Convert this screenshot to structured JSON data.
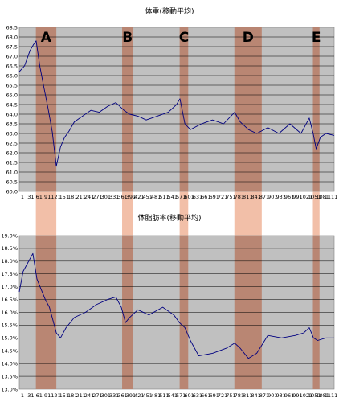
{
  "band_labels": [
    "A",
    "B",
    "C",
    "D",
    "E"
  ],
  "colors": {
    "plot_bg": "#c0c0c0",
    "band_dark": "#b87f6a",
    "band_light": "#f2bfa8",
    "line": "#000080",
    "grid": "#000000"
  },
  "x_ticks": [
    "1",
    "31",
    "61",
    "91",
    "121",
    "151",
    "181",
    "211",
    "241",
    "271",
    "301",
    "331",
    "361",
    "391",
    "421",
    "451",
    "481",
    "511",
    "541",
    "571",
    "601",
    "631",
    "661",
    "691",
    "721",
    "751",
    "781",
    "811",
    "841",
    "871",
    "901",
    "931",
    "961",
    "991",
    "1021",
    "1051",
    "1081",
    "1111"
  ],
  "chart_data": [
    {
      "type": "line",
      "title": "体重(移動平均)",
      "x_range": [
        1,
        1140
      ],
      "ylim": [
        60.0,
        68.5
      ],
      "y_ticks": [
        "60.0",
        "60.5",
        "61.0",
        "61.5",
        "62.0",
        "62.5",
        "63.0",
        "63.5",
        "64.0",
        "64.5",
        "65.0",
        "65.5",
        "66.0",
        "66.5",
        "67.0",
        "67.5",
        "68.0",
        "68.5"
      ],
      "grid": true,
      "bands": [
        {
          "label": "A",
          "from": 61,
          "to": 135
        },
        {
          "label": "B",
          "from": 373,
          "to": 412
        },
        {
          "label": "C",
          "from": 581,
          "to": 612
        },
        {
          "label": "D",
          "from": 779,
          "to": 878
        },
        {
          "label": "E",
          "from": 1063,
          "to": 1087
        }
      ],
      "series": [
        {
          "x": [
            1,
            20,
            40,
            52,
            62,
            75,
            90,
            105,
            120,
            135,
            150,
            165,
            180,
            200,
            230,
            260,
            290,
            320,
            350,
            380,
            400,
            430,
            460,
            500,
            540,
            570,
            582,
            600,
            620,
            660,
            700,
            740,
            780,
            800,
            830,
            860,
            900,
            940,
            980,
            1020,
            1050,
            1064,
            1075,
            1090,
            1110,
            1140
          ],
          "y": [
            66.2,
            66.5,
            67.3,
            67.6,
            67.8,
            66.5,
            65.4,
            64.3,
            63.1,
            61.3,
            62.3,
            62.8,
            63.1,
            63.6,
            63.9,
            64.2,
            64.1,
            64.4,
            64.6,
            64.2,
            64.0,
            63.9,
            63.7,
            63.9,
            64.1,
            64.5,
            64.8,
            63.5,
            63.2,
            63.5,
            63.7,
            63.5,
            64.1,
            63.6,
            63.2,
            63.0,
            63.3,
            63.0,
            63.5,
            63.0,
            63.8,
            63.0,
            62.2,
            62.8,
            63.0,
            62.9
          ]
        }
      ]
    },
    {
      "type": "line",
      "title": "体脂肪率(移動平均)",
      "x_range": [
        1,
        1140
      ],
      "ylim": [
        13.0,
        19.0
      ],
      "y_ticks": [
        "13.0%",
        "13.5%",
        "14.0%",
        "14.5%",
        "15.0%",
        "15.5%",
        "16.0%",
        "16.5%",
        "17.0%",
        "17.5%",
        "18.0%",
        "18.5%",
        "19.0%"
      ],
      "grid": true,
      "bands": [
        {
          "label": "A",
          "from": 61,
          "to": 135
        },
        {
          "label": "B",
          "from": 373,
          "to": 412
        },
        {
          "label": "C",
          "from": 581,
          "to": 612
        },
        {
          "label": "D",
          "from": 779,
          "to": 878
        },
        {
          "label": "E",
          "from": 1063,
          "to": 1087
        }
      ],
      "series": [
        {
          "x": [
            1,
            15,
            30,
            50,
            65,
            80,
            95,
            110,
            125,
            135,
            150,
            170,
            200,
            240,
            280,
            320,
            350,
            370,
            385,
            400,
            430,
            470,
            520,
            560,
            580,
            600,
            620,
            650,
            700,
            750,
            780,
            800,
            830,
            860,
            900,
            950,
            1000,
            1030,
            1050,
            1065,
            1080,
            1110,
            1140
          ],
          "y": [
            16.8,
            17.6,
            17.9,
            18.3,
            17.3,
            16.9,
            16.5,
            16.2,
            15.6,
            15.2,
            15.0,
            15.4,
            15.8,
            16.0,
            16.3,
            16.5,
            16.6,
            16.2,
            15.6,
            15.8,
            16.1,
            15.9,
            16.2,
            15.9,
            15.6,
            15.4,
            14.9,
            14.3,
            14.4,
            14.6,
            14.8,
            14.6,
            14.2,
            14.4,
            15.1,
            15.0,
            15.1,
            15.2,
            15.4,
            15.0,
            14.9,
            15.0,
            15.0
          ]
        }
      ]
    }
  ]
}
